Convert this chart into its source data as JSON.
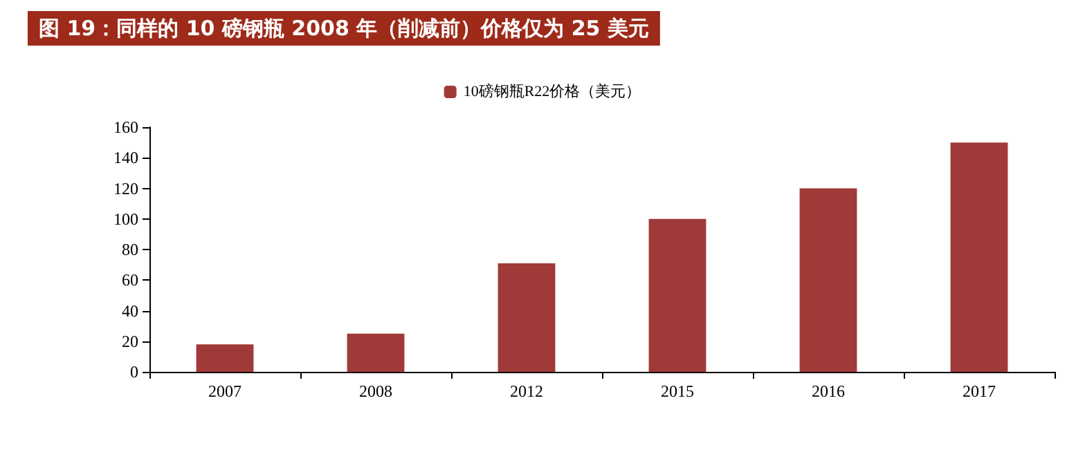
{
  "chart_data": {
    "type": "bar",
    "title": "图 19：同样的 10 磅钢瓶 2008 年（削减前）价格仅为 25 美元",
    "categories": [
      "2007",
      "2008",
      "2012",
      "2015",
      "2016",
      "2017"
    ],
    "series": [
      {
        "name": "10磅钢瓶R22价格（美元）",
        "color": "#a03a38",
        "values": [
          18,
          25,
          71,
          100,
          120,
          150
        ]
      }
    ],
    "ylim": [
      0,
      160
    ],
    "yticks": [
      0,
      20,
      40,
      60,
      80,
      100,
      120,
      140,
      160
    ],
    "grid": false,
    "legend": "top"
  }
}
